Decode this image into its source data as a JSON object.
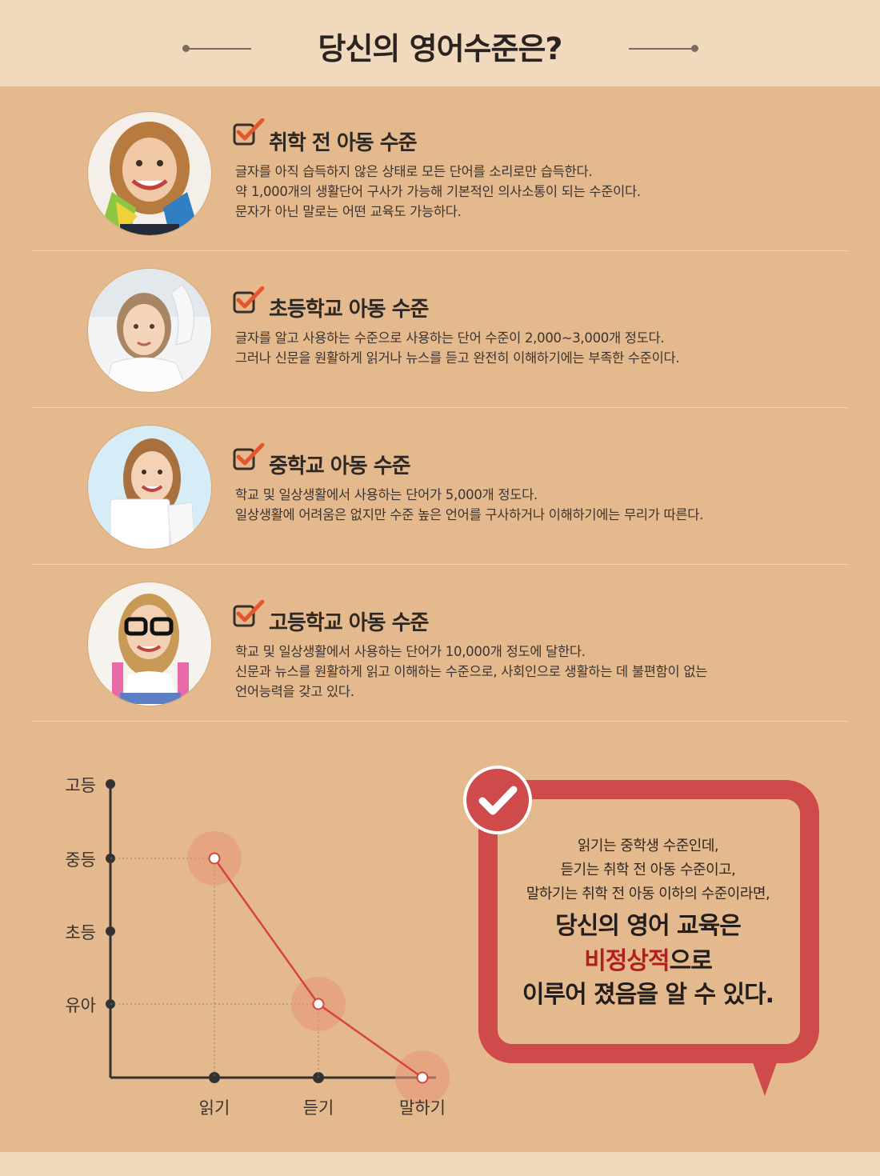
{
  "header": {
    "title": "당신의 영어수준은?"
  },
  "levels": [
    {
      "title": "취학 전 아동 수준",
      "lines": [
        "글자를 아직 습득하지 않은 상태로 모든 단어를 소리로만 습득한다.",
        "약 1,000개의 생활단어 구사가 가능해 기본적인 의사소통이 되는 수준이다.",
        "문자가 아닌 말로는 어떤 교육도 가능하다."
      ]
    },
    {
      "title": "초등학교 아동 수준",
      "lines": [
        "글자를 알고 사용하는 수준으로 사용하는 단어 수준이 2,000~3,000개 정도다.",
        "그러나 신문을 원활하게 읽거나 뉴스를 듣고 완전히 이해하기에는 부족한 수준이다."
      ]
    },
    {
      "title": "중학교 아동 수준",
      "lines": [
        "학교 및 일상생활에서 사용하는 단어가 5,000개 정도다.",
        "일상생활에 어려움은 없지만 수준 높은 언어를 구사하거나 이해하기에는 무리가 따른다."
      ]
    },
    {
      "title": "고등학교 아동 수준",
      "lines": [
        "학교 및 일상생활에서 사용하는 단어가 10,000개 정도에 달한다.",
        "신문과 뉴스를 원활하게 읽고 이해하는 수준으로, 사회인으로 생활하는 데 불편함이 없는",
        "언어능력을 갖고 있다."
      ]
    }
  ],
  "chart_data": {
    "type": "line",
    "y_levels": [
      "유아",
      "초등",
      "중등",
      "고등"
    ],
    "categories": [
      "읽기",
      "듣기",
      "말하기"
    ],
    "values": [
      "중등",
      "유아",
      ""
    ],
    "grid": false
  },
  "conclusion": {
    "line1": "읽기는 중학생 수준인데,",
    "line2": "듣기는 취학 전 아동 수준이고,",
    "line3": "말하기는 취학 전 아동 이하의 수준이라면,",
    "big1": "당신의 영어 교육은",
    "big2_emph": "비정상적",
    "big2_rest": "으로",
    "big3": "이루어 졌음을 알 수 있다."
  },
  "colors": {
    "background": "#e4b98d",
    "header_band": "#f0d9bd",
    "accent_red": "#cf4a4b",
    "check_orange": "#e4572e",
    "chart_line": "#d4453f"
  }
}
